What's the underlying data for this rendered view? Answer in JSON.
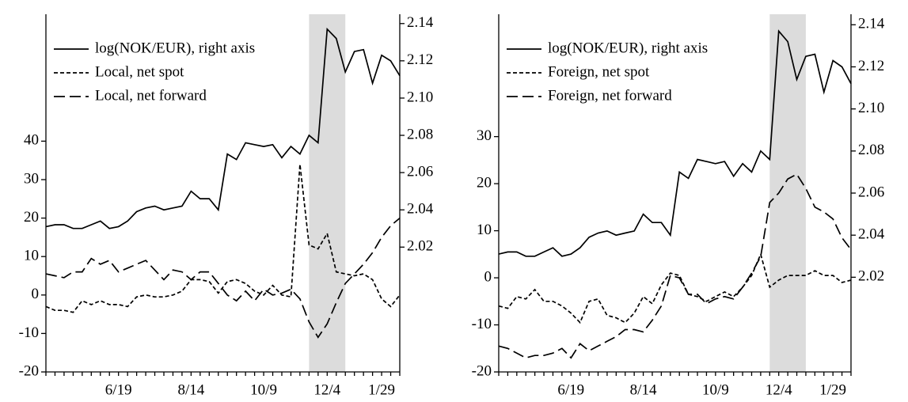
{
  "chart_data": [
    {
      "type": "line",
      "legend": "upper left",
      "shade": [
        29,
        33
      ],
      "shade_color": "#dcdcdc",
      "categories": [
        null,
        null,
        null,
        null,
        null,
        null,
        null,
        null,
        "6/19",
        null,
        null,
        null,
        null,
        null,
        null,
        null,
        "8/14",
        null,
        null,
        null,
        null,
        null,
        null,
        null,
        "10/9",
        null,
        null,
        null,
        null,
        null,
        null,
        "12/4",
        null,
        null,
        null,
        null,
        null,
        "1/29",
        null,
        null
      ],
      "ylim": [
        -20,
        73
      ],
      "yticks": [
        -20,
        -10,
        0,
        10,
        20,
        30,
        40
      ],
      "y2lim": [
        1.953,
        2.145
      ],
      "y2ticks": [
        2.02,
        2.04,
        2.06,
        2.08,
        {
          "value": 2.1,
          "label": "2.10"
        },
        2.12,
        2.14
      ],
      "series": [
        {
          "name": "log(NOK/EUR), right axis",
          "axis": "y2",
          "color": "#000000",
          "dash": "solid",
          "values": [
            2.031,
            2.032,
            2.032,
            2.03,
            2.03,
            2.032,
            2.034,
            2.03,
            2.031,
            2.034,
            2.039,
            2.041,
            2.042,
            2.04,
            2.041,
            2.042,
            2.05,
            2.046,
            2.046,
            2.04,
            2.07,
            2.067,
            2.076,
            2.075,
            2.074,
            2.075,
            2.068,
            2.074,
            2.07,
            2.08,
            2.076,
            2.137,
            2.132,
            2.114,
            2.125,
            2.126,
            2.108,
            2.123,
            2.12,
            2.112
          ]
        },
        {
          "name": "Local, net spot",
          "color": "#000000",
          "dash": "short",
          "values": [
            -3,
            -4,
            -4,
            -4.5,
            -1.5,
            -2.5,
            -1.5,
            -2.5,
            -2.5,
            -3,
            -0.5,
            0,
            -0.5,
            -0.5,
            0,
            1,
            4,
            4,
            3.5,
            0.5,
            3.5,
            4,
            3,
            1,
            0,
            2.5,
            0,
            -0.5,
            34,
            13,
            12,
            16,
            6,
            5.5,
            5,
            5.5,
            4,
            -1,
            -3,
            0
          ]
        },
        {
          "name": "Local, net forward",
          "color": "#000000",
          "dash": "long",
          "values": [
            5.5,
            5,
            4.5,
            6,
            6,
            9.5,
            8,
            9,
            6,
            7,
            8,
            9,
            6.5,
            4,
            6.5,
            6,
            4,
            6,
            6,
            3,
            0,
            -1.5,
            1,
            -1.5,
            1.5,
            0,
            0.5,
            1.5,
            -1,
            -7,
            -11,
            -7.5,
            -2,
            3,
            5.5,
            8,
            11,
            15,
            18,
            20
          ]
        }
      ]
    },
    {
      "type": "line",
      "legend": "upper left",
      "shade": [
        30,
        34
      ],
      "shade_color": "#dcdcdc",
      "categories": [
        null,
        null,
        null,
        null,
        null,
        null,
        null,
        null,
        "6/19",
        null,
        null,
        null,
        null,
        null,
        null,
        null,
        "8/14",
        null,
        null,
        null,
        null,
        null,
        null,
        null,
        "10/9",
        null,
        null,
        null,
        null,
        null,
        null,
        "12/4",
        null,
        null,
        null,
        null,
        null,
        "1/29",
        null,
        null
      ],
      "ylim": [
        -20,
        56
      ],
      "yticks": [
        -20,
        -10,
        0,
        10,
        20,
        30
      ],
      "y2lim": [
        1.975,
        2.145
      ],
      "y2ticks": [
        2.02,
        2.04,
        2.06,
        2.08,
        {
          "value": 2.1,
          "label": "2.10"
        },
        2.12,
        2.14
      ],
      "series": [
        {
          "name": "log(NOK/EUR), right axis",
          "axis": "y2",
          "color": "#000000",
          "dash": "solid",
          "values": [
            2.031,
            2.032,
            2.032,
            2.03,
            2.03,
            2.032,
            2.034,
            2.03,
            2.031,
            2.034,
            2.039,
            2.041,
            2.042,
            2.04,
            2.041,
            2.042,
            2.05,
            2.046,
            2.046,
            2.04,
            2.07,
            2.067,
            2.076,
            2.075,
            2.074,
            2.075,
            2.068,
            2.074,
            2.07,
            2.08,
            2.076,
            2.137,
            2.132,
            2.114,
            2.125,
            2.126,
            2.108,
            2.123,
            2.12,
            2.112
          ]
        },
        {
          "name": "Foreign, net spot",
          "color": "#000000",
          "dash": "short",
          "values": [
            -6,
            -6.5,
            -4,
            -4.5,
            -2.5,
            -5,
            -5,
            -6,
            -7.5,
            -9.5,
            -5,
            -4.5,
            -8,
            -8.5,
            -9.5,
            -7.5,
            -4,
            -5.5,
            -1.5,
            1,
            0.5,
            -3.5,
            -4,
            -5,
            -4,
            -3,
            -4,
            -2,
            0.5,
            5,
            -2,
            -0.5,
            0.5,
            0.5,
            0.5,
            1.5,
            0.5,
            0.5,
            -1,
            -0.5
          ]
        },
        {
          "name": "Foreign, net forward",
          "color": "#000000",
          "dash": "long",
          "values": [
            -14.5,
            -15,
            -16,
            -17,
            -16.5,
            -16.5,
            -16,
            -15,
            -17,
            -14,
            -15.5,
            -14.5,
            -13.5,
            -12.5,
            -11,
            -11,
            -11.5,
            -9,
            -6,
            0.5,
            0,
            -3.5,
            -3.5,
            -5.5,
            -4.5,
            -4,
            -4.5,
            -2,
            1,
            4.5,
            16,
            18,
            21,
            22,
            19,
            15,
            14,
            12.5,
            8.5,
            6
          ]
        }
      ]
    }
  ]
}
